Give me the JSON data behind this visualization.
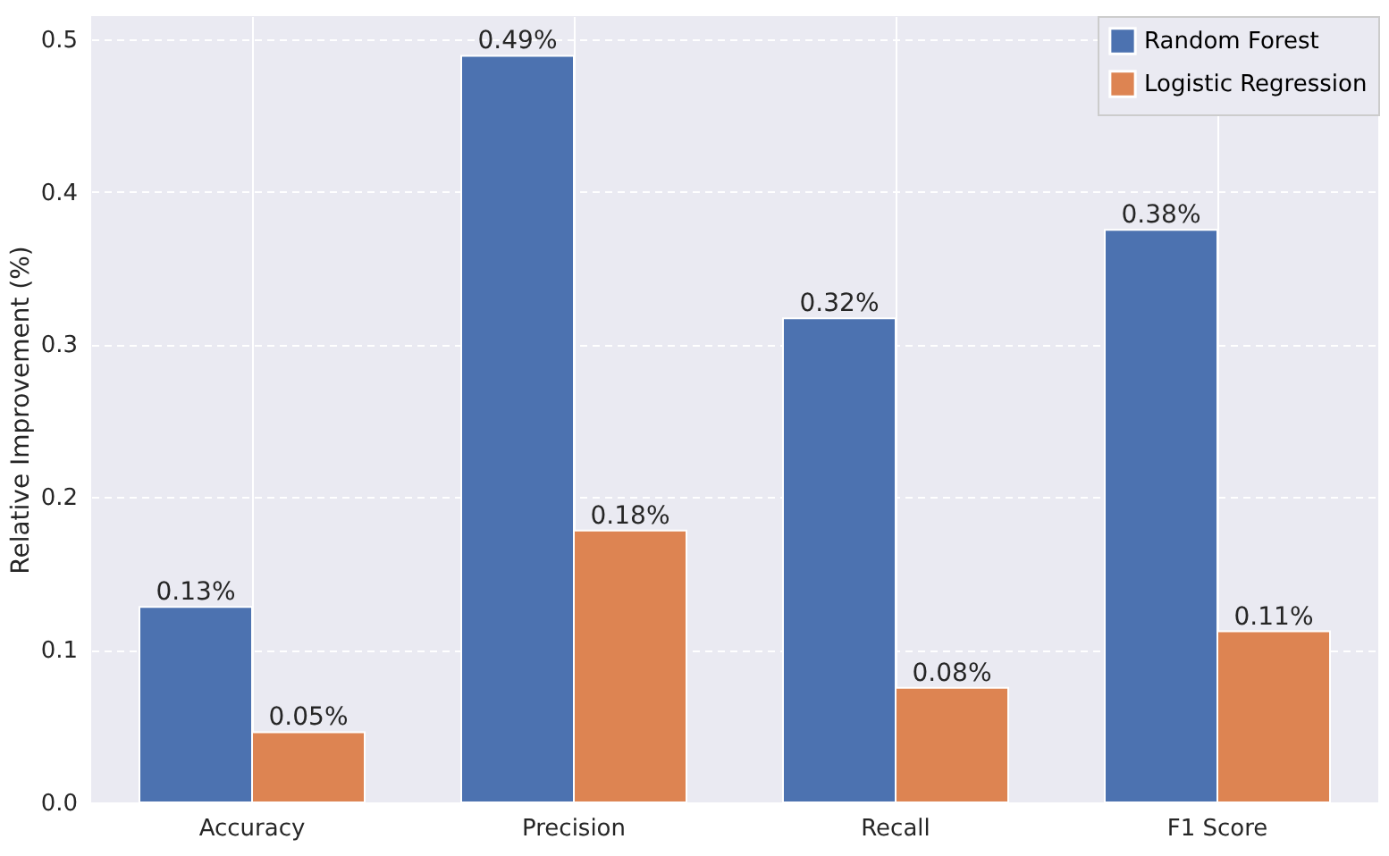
{
  "chart_data": {
    "type": "bar",
    "ylabel": "Relative Improvement (%)",
    "categories": [
      "Accuracy",
      "Precision",
      "Recall",
      "F1 Score"
    ],
    "series": [
      {
        "name": "Random Forest",
        "color": "#4c72b0",
        "values": [
          0.128,
          0.489,
          0.317,
          0.375
        ],
        "value_labels": [
          "0.13%",
          "0.49%",
          "0.32%",
          "0.38%"
        ]
      },
      {
        "name": "Logistic Regression",
        "color": "#dd8452",
        "values": [
          0.046,
          0.178,
          0.075,
          0.112
        ],
        "value_labels": [
          "0.05%",
          "0.18%",
          "0.08%",
          "0.11%"
        ]
      }
    ],
    "ylim": [
      0,
      0.515
    ],
    "yticks": [
      {
        "value": 0,
        "label": "0.0"
      },
      0.1,
      0.2,
      0.3,
      0.4,
      0.5
    ],
    "grid": true,
    "legend": "top right"
  }
}
